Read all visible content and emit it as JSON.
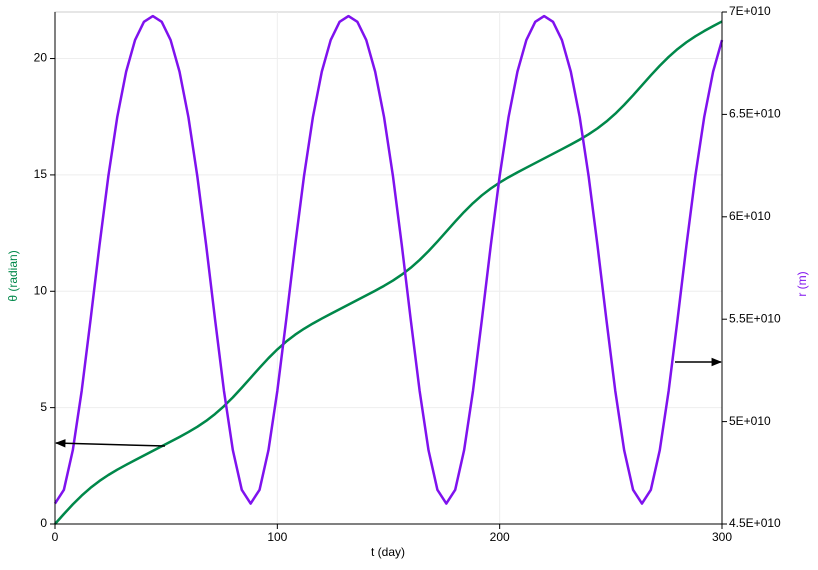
{
  "chart_data": {
    "type": "line",
    "xlabel": "t (day)",
    "ylabel": "θ (radian)",
    "y2label": "r (m)",
    "x": [
      0,
      4,
      8,
      12,
      16,
      20,
      24,
      28,
      32,
      36,
      40,
      44,
      48,
      52,
      56,
      60,
      64,
      68,
      72,
      76,
      80,
      84,
      88,
      92,
      96,
      100,
      104,
      108,
      112,
      116,
      120,
      124,
      128,
      132,
      136,
      140,
      144,
      148,
      152,
      156,
      160,
      164,
      168,
      172,
      176,
      180,
      184,
      188,
      192,
      196,
      200,
      204,
      208,
      212,
      216,
      220,
      224,
      228,
      232,
      236,
      240,
      244,
      248,
      252,
      256,
      260,
      264,
      268,
      272,
      276,
      280,
      284,
      288,
      292,
      296,
      300
    ],
    "series": [
      {
        "name": "θ",
        "color": "#00884a",
        "axis": "y",
        "values": [
          0,
          0.43,
          0.8416,
          1.2199,
          1.5564,
          1.8499,
          2.1057,
          2.3333,
          2.5433,
          2.7447,
          2.9433,
          3.1416,
          3.3399,
          3.5385,
          3.7399,
          3.9499,
          4.1775,
          4.4333,
          4.7268,
          5.0633,
          5.4416,
          5.8532,
          6.2832,
          6.7132,
          7.1248,
          7.5031,
          7.8396,
          8.1331,
          8.3889,
          8.6165,
          8.8265,
          9.0279,
          9.2265,
          9.4248,
          9.6231,
          9.8217,
          10.0231,
          10.2331,
          10.4607,
          10.7165,
          11.01,
          11.3465,
          11.7248,
          12.1364,
          12.5664,
          12.9964,
          13.408,
          13.7863,
          14.1228,
          14.4163,
          14.6721,
          14.8997,
          15.1097,
          15.3111,
          15.5097,
          15.708,
          15.9063,
          16.1049,
          16.3063,
          16.5163,
          16.7439,
          16.9997,
          17.2932,
          17.6297,
          18.008,
          18.4196,
          18.8496,
          19.2796,
          19.6912,
          20.0695,
          20.406,
          20.6995,
          20.9553,
          21.1829,
          21.3929,
          21.5943
        ]
      },
      {
        "name": "r",
        "color": "#7f12ee",
        "axis": "y2",
        "values": [
          46000000000.0,
          46670000000.0,
          48600000000.0,
          51500000000.0,
          54980000000.0,
          58600000000.0,
          61990000000.0,
          64870000000.0,
          67090000000.0,
          68630000000.0,
          69520000000.0,
          69800000000.0,
          69520000000.0,
          68630000000.0,
          67090000000.0,
          64870000000.0,
          61990000000.0,
          58600000000.0,
          54980000000.0,
          51500000000.0,
          48600000000.0,
          46670000000.0,
          46000000000.0,
          46670000000.0,
          48600000000.0,
          51500000000.0,
          54980000000.0,
          58600000000.0,
          61990000000.0,
          64870000000.0,
          67090000000.0,
          68630000000.0,
          69520000000.0,
          69800000000.0,
          69520000000.0,
          68630000000.0,
          67090000000.0,
          64870000000.0,
          61990000000.0,
          58600000000.0,
          54980000000.0,
          51500000000.0,
          48600000000.0,
          46670000000.0,
          46000000000.0,
          46670000000.0,
          48600000000.0,
          51500000000.0,
          54980000000.0,
          58600000000.0,
          61990000000.0,
          64870000000.0,
          67090000000.0,
          68630000000.0,
          69520000000.0,
          69800000000.0,
          69520000000.0,
          68630000000.0,
          67090000000.0,
          64870000000.0,
          61990000000.0,
          58600000000.0,
          54980000000.0,
          51500000000.0,
          48600000000.0,
          46670000000.0,
          46000000000.0,
          46670000000.0,
          48600000000.0,
          51500000000.0,
          54980000000.0,
          58600000000.0,
          61990000000.0,
          64870000000.0,
          67090000000.0,
          68630000000.0
        ]
      }
    ],
    "xlim": [
      0,
      300
    ],
    "xticks": [
      0,
      100,
      200,
      300
    ],
    "ylim": [
      0,
      22
    ],
    "yticks": [
      0,
      5,
      10,
      15,
      20
    ],
    "y2lim": [
      45000000000,
      70000000000
    ],
    "y2ticks": [
      {
        "value": 45000000000,
        "label": "4.5E+010"
      },
      {
        "value": 50000000000,
        "label": "5E+010"
      },
      {
        "value": 55000000000,
        "label": "5.5E+010"
      },
      {
        "value": 60000000000,
        "label": "6E+010"
      },
      {
        "value": 65000000000,
        "label": "6.5E+010"
      },
      {
        "value": 70000000000,
        "label": "7E+010"
      }
    ],
    "grid": true
  }
}
